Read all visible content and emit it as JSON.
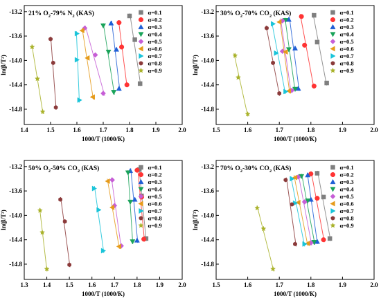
{
  "colors": {
    "a0.1": "#7f7f7f",
    "a0.2": "#ff3333",
    "a0.3": "#1f5fd6",
    "a0.4": "#1aa35a",
    "a0.5": "#c65ed6",
    "a0.6": "#e69b1a",
    "a0.7": "#19c4d9",
    "a0.8": "#8b3a3a",
    "a0.9": "#a9b22a"
  },
  "chart_data": [
    {
      "type": "scatter",
      "title_parts": {
        "pre": "21% O",
        "s1": "2",
        "mid": "-79% N",
        "s2": "2",
        "post": " (KAS)"
      },
      "xlabel": "1000/T (1000/K)",
      "ylabel": "ln(β/T²)",
      "xlim": [
        1.4,
        2.0
      ],
      "ylim": [
        -15.05,
        -13.1
      ],
      "xticks": [
        "1.4",
        "1.5",
        "1.6",
        "1.7",
        "1.8",
        "1.9",
        "2.0"
      ],
      "yticks": [
        "-13.2",
        "-13.6",
        "-14.0",
        "-14.4",
        "-14.8"
      ],
      "legend_position": "top-right",
      "series": [
        {
          "name": "α=0.1",
          "key": "a0.1",
          "marker": "square",
          "x": [
            1.8,
            1.82,
            1.84
          ],
          "y": [
            -13.27,
            -13.66,
            -14.38
          ]
        },
        {
          "name": "α=0.2",
          "key": "a0.2",
          "marker": "circle",
          "x": [
            1.76,
            1.77,
            1.79
          ],
          "y": [
            -13.38,
            -13.78,
            -14.4
          ]
        },
        {
          "name": "α=0.3",
          "key": "a0.3",
          "marker": "triangle-up",
          "x": [
            1.73,
            1.75,
            1.76
          ],
          "y": [
            -13.39,
            -13.82,
            -14.46
          ]
        },
        {
          "name": "α=0.4",
          "key": "a0.4",
          "marker": "triangle-down",
          "x": [
            1.7,
            1.72,
            1.74
          ],
          "y": [
            -13.43,
            -13.86,
            -14.52
          ]
        },
        {
          "name": "α=0.5",
          "key": "a0.5",
          "marker": "diamond",
          "x": [
            1.63,
            1.67,
            1.7
          ],
          "y": [
            -13.47,
            -13.91,
            -14.54
          ]
        },
        {
          "name": "α=0.6",
          "key": "a0.6",
          "marker": "triangle-left",
          "x": [
            1.62,
            1.64,
            1.66
          ],
          "y": [
            -13.51,
            -13.96,
            -14.6
          ]
        },
        {
          "name": "α=0.7",
          "key": "a0.7",
          "marker": "triangle-right",
          "x": [
            1.6,
            1.6,
            1.61
          ],
          "y": [
            -13.56,
            -13.99,
            -14.65
          ]
        },
        {
          "name": "α=0.8",
          "key": "a0.8",
          "marker": "hexagon",
          "x": [
            1.5,
            1.51,
            1.52
          ],
          "y": [
            -13.65,
            -14.04,
            -14.77
          ]
        },
        {
          "name": "α=0.9",
          "key": "a0.9",
          "marker": "star",
          "x": [
            1.43,
            1.45,
            1.47
          ],
          "y": [
            -13.78,
            -14.3,
            -14.84
          ]
        }
      ]
    },
    {
      "type": "scatter",
      "title_parts": {
        "pre": "30% O",
        "s1": "2",
        "mid": "-70% CO",
        "s2": "2",
        "post": " (KAS)"
      },
      "xlabel": "1000/T (1000/K)",
      "ylabel": "ln(β/T²)",
      "xlim": [
        1.5,
        2.0
      ],
      "ylim": [
        -15.05,
        -13.1
      ],
      "xticks": [
        "1.5",
        "1.6",
        "1.7",
        "1.8",
        "1.9",
        "2.0"
      ],
      "yticks": [
        "-13.2",
        "-13.6",
        "-14.0",
        "-14.4",
        "-14.8"
      ],
      "legend_position": "top-right",
      "series": [
        {
          "name": "α=0.1",
          "key": "a0.1",
          "marker": "square",
          "x": [
            1.81,
            1.82,
            1.85
          ],
          "y": [
            -13.26,
            -13.7,
            -14.37
          ]
        },
        {
          "name": "α=0.2",
          "key": "a0.2",
          "marker": "circle",
          "x": [
            1.77,
            1.78,
            1.81
          ],
          "y": [
            -13.28,
            -13.75,
            -14.42
          ]
        },
        {
          "name": "α=0.3",
          "key": "a0.3",
          "marker": "triangle-up",
          "x": [
            1.73,
            1.75,
            1.76
          ],
          "y": [
            -13.33,
            -13.8,
            -14.46
          ]
        },
        {
          "name": "α=0.4",
          "key": "a0.4",
          "marker": "triangle-down",
          "x": [
            1.72,
            1.73,
            1.75
          ],
          "y": [
            -13.34,
            -13.82,
            -14.47
          ]
        },
        {
          "name": "α=0.5",
          "key": "a0.5",
          "marker": "diamond",
          "x": [
            1.71,
            1.71,
            1.74
          ],
          "y": [
            -13.35,
            -13.85,
            -14.49
          ]
        },
        {
          "name": "α=0.6",
          "key": "a0.6",
          "marker": "triangle-left",
          "x": [
            1.7,
            1.72,
            1.73
          ],
          "y": [
            -13.37,
            -13.86,
            -14.5
          ]
        },
        {
          "name": "α=0.7",
          "key": "a0.7",
          "marker": "triangle-right",
          "x": [
            1.68,
            1.69,
            1.72
          ],
          "y": [
            -13.4,
            -13.88,
            -14.51
          ]
        },
        {
          "name": "α=0.8",
          "key": "a0.8",
          "marker": "hexagon",
          "x": [
            1.66,
            1.68,
            1.7
          ],
          "y": [
            -13.47,
            -14.04,
            -14.54
          ]
        },
        {
          "name": "α=0.9",
          "key": "a0.9",
          "marker": "star",
          "x": [
            1.56,
            1.57,
            1.6
          ],
          "y": [
            -13.92,
            -14.28,
            -14.88
          ]
        }
      ]
    },
    {
      "type": "scatter",
      "title_parts": {
        "pre": "50% O",
        "s1": "2",
        "mid": "-50% CO",
        "s2": "2",
        "post": " (KAS)"
      },
      "xlabel": "1000/T (1000/K)",
      "ylabel": "ln(β/T²)",
      "xlim": [
        1.3,
        2.0
      ],
      "ylim": [
        -15.05,
        -13.1
      ],
      "xticks": [
        "1.3",
        "1.4",
        "1.5",
        "1.6",
        "1.7",
        "1.8",
        "1.9",
        "2.0"
      ],
      "yticks": [
        "-13.2",
        "-13.6",
        "-14.0",
        "-14.4",
        "-14.8"
      ],
      "legend_position": "top-right",
      "series": [
        {
          "name": "α=0.1",
          "key": "a0.1",
          "marker": "square",
          "x": [
            1.81,
            1.82,
            1.84
          ],
          "y": [
            -13.25,
            -13.68,
            -14.38
          ]
        },
        {
          "name": "α=0.2",
          "key": "a0.2",
          "marker": "circle",
          "x": [
            1.8,
            1.82,
            1.83
          ],
          "y": [
            -13.26,
            -13.7,
            -14.39
          ]
        },
        {
          "name": "α=0.3",
          "key": "a0.3",
          "marker": "triangle-up",
          "x": [
            1.77,
            1.79,
            1.8
          ],
          "y": [
            -13.27,
            -13.74,
            -14.41
          ]
        },
        {
          "name": "α=0.4",
          "key": "a0.4",
          "marker": "triangle-down",
          "x": [
            1.76,
            1.77,
            1.78
          ],
          "y": [
            -13.3,
            -13.78,
            -14.43
          ]
        },
        {
          "name": "α=0.5",
          "key": "a0.5",
          "marker": "diamond",
          "x": [
            1.69,
            1.7,
            1.73
          ],
          "y": [
            -13.42,
            -13.84,
            -14.5
          ]
        },
        {
          "name": "α=0.6",
          "key": "a0.6",
          "marker": "triangle-left",
          "x": [
            1.67,
            1.69,
            1.72
          ],
          "y": [
            -13.44,
            -13.87,
            -14.51
          ]
        },
        {
          "name": "α=0.7",
          "key": "a0.7",
          "marker": "triangle-right",
          "x": [
            1.61,
            1.63,
            1.65
          ],
          "y": [
            -13.56,
            -13.91,
            -14.58
          ]
        },
        {
          "name": "α=0.8",
          "key": "a0.8",
          "marker": "hexagon",
          "x": [
            1.46,
            1.48,
            1.5
          ],
          "y": [
            -13.74,
            -14.1,
            -14.81
          ]
        },
        {
          "name": "α=0.9",
          "key": "a0.9",
          "marker": "star",
          "x": [
            1.37,
            1.38,
            1.4
          ],
          "y": [
            -13.92,
            -14.28,
            -14.88
          ]
        }
      ]
    },
    {
      "type": "scatter",
      "title_parts": {
        "pre": "70% O",
        "s1": "2",
        "mid": "-30% CO",
        "s2": "2",
        "post": " (KAS)"
      },
      "xlabel": "1000/T (1000/K)",
      "ylabel": "ln(β/T²)",
      "xlim": [
        1.5,
        2.0
      ],
      "ylim": [
        -15.05,
        -13.1
      ],
      "xticks": [
        "1.5",
        "1.6",
        "1.7",
        "1.8",
        "1.9",
        "2.0"
      ],
      "yticks": [
        "-13.2",
        "-13.6",
        "-14.0",
        "-14.4",
        "-14.8"
      ],
      "legend_position": "top-right",
      "series": [
        {
          "name": "α=0.1",
          "key": "a0.1",
          "marker": "square",
          "x": [
            1.82,
            1.84,
            1.86
          ],
          "y": [
            -13.31,
            -13.7,
            -14.38
          ]
        },
        {
          "name": "α=0.2",
          "key": "a0.2",
          "marker": "circle",
          "x": [
            1.8,
            1.82,
            1.84
          ],
          "y": [
            -13.32,
            -13.72,
            -14.4
          ]
        },
        {
          "name": "α=0.3",
          "key": "a0.3",
          "marker": "triangle-up",
          "x": [
            1.79,
            1.8,
            1.82
          ],
          "y": [
            -13.34,
            -13.74,
            -14.43
          ]
        },
        {
          "name": "α=0.4",
          "key": "a0.4",
          "marker": "triangle-down",
          "x": [
            1.77,
            1.79,
            1.81
          ],
          "y": [
            -13.36,
            -13.76,
            -14.44
          ]
        },
        {
          "name": "α=0.5",
          "key": "a0.5",
          "marker": "diamond",
          "x": [
            1.76,
            1.78,
            1.8
          ],
          "y": [
            -13.37,
            -13.78,
            -14.45
          ]
        },
        {
          "name": "α=0.6",
          "key": "a0.6",
          "marker": "triangle-left",
          "x": [
            1.75,
            1.76,
            1.79
          ],
          "y": [
            -13.38,
            -13.79,
            -14.46
          ]
        },
        {
          "name": "α=0.7",
          "key": "a0.7",
          "marker": "triangle-right",
          "x": [
            1.74,
            1.75,
            1.78
          ],
          "y": [
            -13.4,
            -13.8,
            -14.47
          ]
        },
        {
          "name": "α=0.8",
          "key": "a0.8",
          "marker": "hexagon",
          "x": [
            1.72,
            1.74,
            1.75
          ],
          "y": [
            -13.42,
            -13.82,
            -14.47
          ]
        },
        {
          "name": "α=0.9",
          "key": "a0.9",
          "marker": "star",
          "x": [
            1.63,
            1.65,
            1.68
          ],
          "y": [
            -13.88,
            -14.22,
            -14.88
          ]
        }
      ]
    }
  ]
}
